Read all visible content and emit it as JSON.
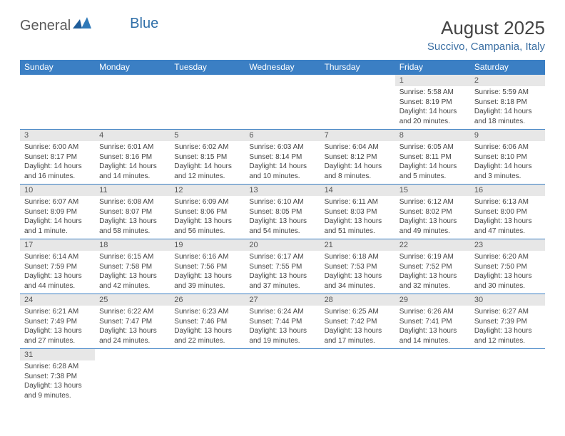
{
  "logo": {
    "text1": "General",
    "text2": "Blue"
  },
  "title": {
    "month": "August 2025",
    "location": "Succivo, Campania, Italy"
  },
  "headers": [
    "Sunday",
    "Monday",
    "Tuesday",
    "Wednesday",
    "Thursday",
    "Friday",
    "Saturday"
  ],
  "colors": {
    "headerBg": "#3b7fc4",
    "headerText": "#ffffff",
    "dayNumBg": "#e7e7e7",
    "border": "#3b7fc4",
    "location": "#3b6fa3"
  },
  "weeks": [
    [
      null,
      null,
      null,
      null,
      null,
      {
        "n": "1",
        "sr": "Sunrise: 5:58 AM",
        "ss": "Sunset: 8:19 PM",
        "d1": "Daylight: 14 hours",
        "d2": "and 20 minutes."
      },
      {
        "n": "2",
        "sr": "Sunrise: 5:59 AM",
        "ss": "Sunset: 8:18 PM",
        "d1": "Daylight: 14 hours",
        "d2": "and 18 minutes."
      }
    ],
    [
      {
        "n": "3",
        "sr": "Sunrise: 6:00 AM",
        "ss": "Sunset: 8:17 PM",
        "d1": "Daylight: 14 hours",
        "d2": "and 16 minutes."
      },
      {
        "n": "4",
        "sr": "Sunrise: 6:01 AM",
        "ss": "Sunset: 8:16 PM",
        "d1": "Daylight: 14 hours",
        "d2": "and 14 minutes."
      },
      {
        "n": "5",
        "sr": "Sunrise: 6:02 AM",
        "ss": "Sunset: 8:15 PM",
        "d1": "Daylight: 14 hours",
        "d2": "and 12 minutes."
      },
      {
        "n": "6",
        "sr": "Sunrise: 6:03 AM",
        "ss": "Sunset: 8:14 PM",
        "d1": "Daylight: 14 hours",
        "d2": "and 10 minutes."
      },
      {
        "n": "7",
        "sr": "Sunrise: 6:04 AM",
        "ss": "Sunset: 8:12 PM",
        "d1": "Daylight: 14 hours",
        "d2": "and 8 minutes."
      },
      {
        "n": "8",
        "sr": "Sunrise: 6:05 AM",
        "ss": "Sunset: 8:11 PM",
        "d1": "Daylight: 14 hours",
        "d2": "and 5 minutes."
      },
      {
        "n": "9",
        "sr": "Sunrise: 6:06 AM",
        "ss": "Sunset: 8:10 PM",
        "d1": "Daylight: 14 hours",
        "d2": "and 3 minutes."
      }
    ],
    [
      {
        "n": "10",
        "sr": "Sunrise: 6:07 AM",
        "ss": "Sunset: 8:09 PM",
        "d1": "Daylight: 14 hours",
        "d2": "and 1 minute."
      },
      {
        "n": "11",
        "sr": "Sunrise: 6:08 AM",
        "ss": "Sunset: 8:07 PM",
        "d1": "Daylight: 13 hours",
        "d2": "and 58 minutes."
      },
      {
        "n": "12",
        "sr": "Sunrise: 6:09 AM",
        "ss": "Sunset: 8:06 PM",
        "d1": "Daylight: 13 hours",
        "d2": "and 56 minutes."
      },
      {
        "n": "13",
        "sr": "Sunrise: 6:10 AM",
        "ss": "Sunset: 8:05 PM",
        "d1": "Daylight: 13 hours",
        "d2": "and 54 minutes."
      },
      {
        "n": "14",
        "sr": "Sunrise: 6:11 AM",
        "ss": "Sunset: 8:03 PM",
        "d1": "Daylight: 13 hours",
        "d2": "and 51 minutes."
      },
      {
        "n": "15",
        "sr": "Sunrise: 6:12 AM",
        "ss": "Sunset: 8:02 PM",
        "d1": "Daylight: 13 hours",
        "d2": "and 49 minutes."
      },
      {
        "n": "16",
        "sr": "Sunrise: 6:13 AM",
        "ss": "Sunset: 8:00 PM",
        "d1": "Daylight: 13 hours",
        "d2": "and 47 minutes."
      }
    ],
    [
      {
        "n": "17",
        "sr": "Sunrise: 6:14 AM",
        "ss": "Sunset: 7:59 PM",
        "d1": "Daylight: 13 hours",
        "d2": "and 44 minutes."
      },
      {
        "n": "18",
        "sr": "Sunrise: 6:15 AM",
        "ss": "Sunset: 7:58 PM",
        "d1": "Daylight: 13 hours",
        "d2": "and 42 minutes."
      },
      {
        "n": "19",
        "sr": "Sunrise: 6:16 AM",
        "ss": "Sunset: 7:56 PM",
        "d1": "Daylight: 13 hours",
        "d2": "and 39 minutes."
      },
      {
        "n": "20",
        "sr": "Sunrise: 6:17 AM",
        "ss": "Sunset: 7:55 PM",
        "d1": "Daylight: 13 hours",
        "d2": "and 37 minutes."
      },
      {
        "n": "21",
        "sr": "Sunrise: 6:18 AM",
        "ss": "Sunset: 7:53 PM",
        "d1": "Daylight: 13 hours",
        "d2": "and 34 minutes."
      },
      {
        "n": "22",
        "sr": "Sunrise: 6:19 AM",
        "ss": "Sunset: 7:52 PM",
        "d1": "Daylight: 13 hours",
        "d2": "and 32 minutes."
      },
      {
        "n": "23",
        "sr": "Sunrise: 6:20 AM",
        "ss": "Sunset: 7:50 PM",
        "d1": "Daylight: 13 hours",
        "d2": "and 30 minutes."
      }
    ],
    [
      {
        "n": "24",
        "sr": "Sunrise: 6:21 AM",
        "ss": "Sunset: 7:49 PM",
        "d1": "Daylight: 13 hours",
        "d2": "and 27 minutes."
      },
      {
        "n": "25",
        "sr": "Sunrise: 6:22 AM",
        "ss": "Sunset: 7:47 PM",
        "d1": "Daylight: 13 hours",
        "d2": "and 24 minutes."
      },
      {
        "n": "26",
        "sr": "Sunrise: 6:23 AM",
        "ss": "Sunset: 7:46 PM",
        "d1": "Daylight: 13 hours",
        "d2": "and 22 minutes."
      },
      {
        "n": "27",
        "sr": "Sunrise: 6:24 AM",
        "ss": "Sunset: 7:44 PM",
        "d1": "Daylight: 13 hours",
        "d2": "and 19 minutes."
      },
      {
        "n": "28",
        "sr": "Sunrise: 6:25 AM",
        "ss": "Sunset: 7:42 PM",
        "d1": "Daylight: 13 hours",
        "d2": "and 17 minutes."
      },
      {
        "n": "29",
        "sr": "Sunrise: 6:26 AM",
        "ss": "Sunset: 7:41 PM",
        "d1": "Daylight: 13 hours",
        "d2": "and 14 minutes."
      },
      {
        "n": "30",
        "sr": "Sunrise: 6:27 AM",
        "ss": "Sunset: 7:39 PM",
        "d1": "Daylight: 13 hours",
        "d2": "and 12 minutes."
      }
    ],
    [
      {
        "n": "31",
        "sr": "Sunrise: 6:28 AM",
        "ss": "Sunset: 7:38 PM",
        "d1": "Daylight: 13 hours",
        "d2": "and 9 minutes."
      },
      null,
      null,
      null,
      null,
      null,
      null
    ]
  ]
}
